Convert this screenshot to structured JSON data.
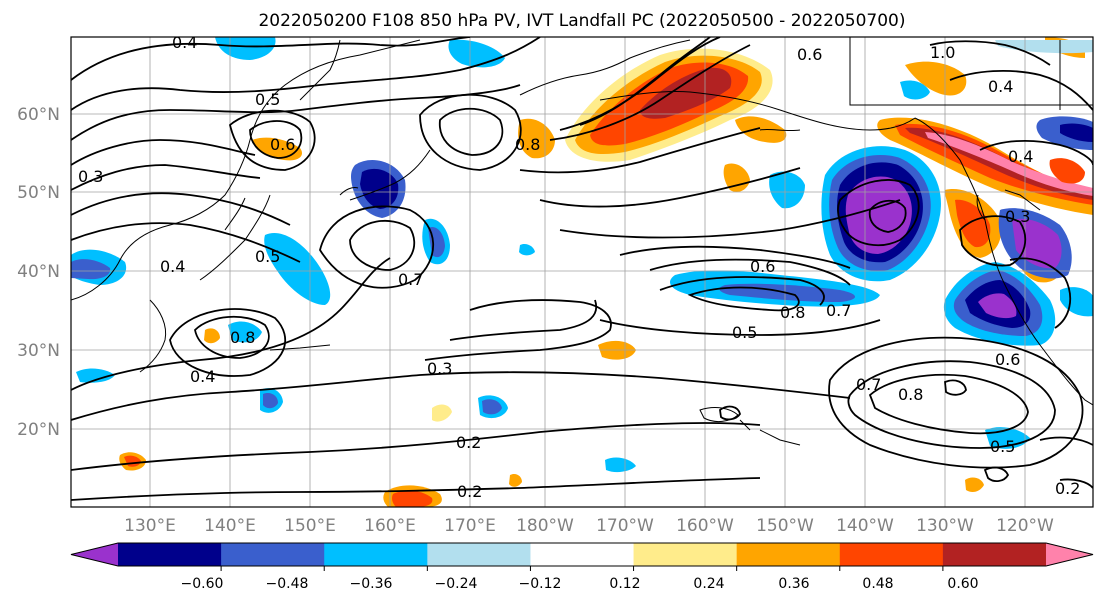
{
  "title": "2022050200 F108 850 hPa PV, IVT Landfall PC (2022050500 - 2022050700)",
  "map": {
    "lat_ticks": [
      "60°N",
      "50°N",
      "40°N",
      "30°N",
      "20°N"
    ],
    "lon_ticks": [
      "130°E",
      "140°E",
      "150°E",
      "160°E",
      "170°E",
      "180°W",
      "170°W",
      "160°W",
      "150°W",
      "140°W",
      "130°W",
      "120°W"
    ],
    "contour_labels": [
      "0.4",
      "0.5",
      "0.3",
      "0.4",
      "0.6",
      "0.7",
      "0.8",
      "0.6",
      "0.8",
      "0.7",
      "0.5",
      "0.3",
      "0.2",
      "0.2",
      "0.4",
      "0.8",
      "0.5",
      "0.6",
      "0.7",
      "0.8",
      "0.5",
      "0.2",
      "1.0",
      "0.6",
      "0.4",
      "0.4",
      "0.3"
    ]
  },
  "colorbar": {
    "ticks": [
      "−0.60",
      "−0.48",
      "−0.36",
      "−0.24",
      "−0.12",
      "0.12",
      "0.24",
      "0.36",
      "0.48",
      "0.60"
    ],
    "colors": [
      "#9a32cd",
      "#00008b",
      "#3a5fcd",
      "#00bfff",
      "#b2dfee",
      "#ffffff",
      "#ffec8b",
      "#ffa500",
      "#ff4500",
      "#b22222",
      "#ff82ab"
    ],
    "extend": "both"
  }
}
